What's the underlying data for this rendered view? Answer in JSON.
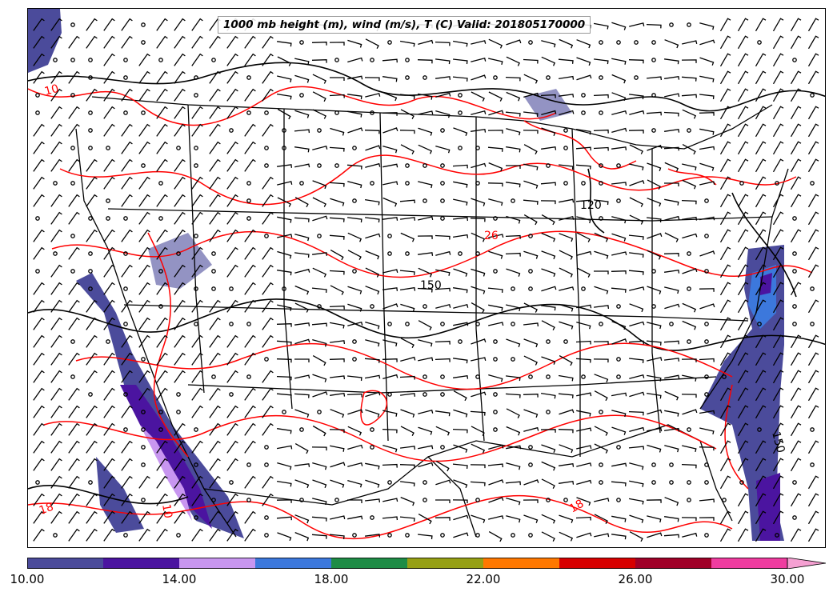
{
  "title": "1000 mb height (m), wind (m/s), T (C) Valid: 201805170000",
  "colorbar": {
    "min": 10,
    "max": 30,
    "step": 2,
    "colors": [
      "#4b4b9b",
      "#4b14a0",
      "#c896f0",
      "#3c78dc",
      "#1e8c46",
      "#96a014",
      "#ff7800",
      "#d70000",
      "#a00028",
      "#f03ca0"
    ],
    "extend_color": "#f5a0d2",
    "tick_labels": [
      "10.00",
      "14.00",
      "18.00",
      "22.00",
      "26.00",
      "30.00"
    ],
    "tick_values": [
      10,
      14,
      18,
      22,
      26,
      30
    ]
  },
  "contour_labels": {
    "temperature": [
      "10",
      "26",
      "18",
      "10",
      "18"
    ],
    "height": [
      "150",
      "120",
      "150"
    ]
  },
  "colors": {
    "temperature_contour": "#ff0000",
    "height_contour": "#000000",
    "wind_barb": "#000000"
  }
}
